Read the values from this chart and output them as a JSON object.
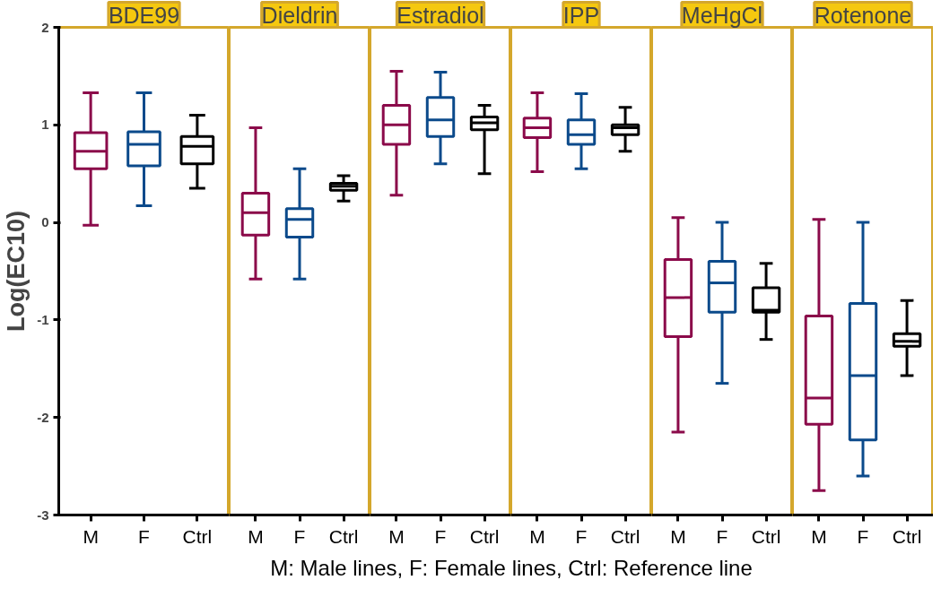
{
  "chart_data": [
    {
      "type": "box",
      "title": "BDE99",
      "ylabel": "Log(EC10)",
      "categories": [
        "M",
        "F",
        "Ctrl"
      ],
      "colors": [
        "#8b0a4a",
        "#0b4a8b",
        "#000000"
      ],
      "ylim": [
        -3,
        2
      ],
      "yticks": [
        -3,
        -2,
        -1,
        0,
        1,
        2
      ],
      "grid": false,
      "annotations": [
        "M: Male lines, F: Female lines, Ctrl: Reference line"
      ],
      "boxes": [
        {
          "low": -0.03,
          "q1": 0.55,
          "median": 0.73,
          "q3": 0.92,
          "high": 1.33
        },
        {
          "low": 0.17,
          "q1": 0.58,
          "median": 0.8,
          "q3": 0.93,
          "high": 1.33
        },
        {
          "low": 0.35,
          "q1": 0.6,
          "median": 0.78,
          "q3": 0.88,
          "high": 1.1
        }
      ]
    },
    {
      "type": "box",
      "title": "Dieldrin",
      "categories": [
        "M",
        "F",
        "Ctrl"
      ],
      "colors": [
        "#8b0a4a",
        "#0b4a8b",
        "#000000"
      ],
      "ylim": [
        -3,
        2
      ],
      "yticks": [
        -3,
        -2,
        -1,
        0,
        1,
        2
      ],
      "grid": false,
      "tick_labels": "x",
      "boxes": [
        {
          "low": -0.58,
          "q1": -0.13,
          "median": 0.1,
          "q3": 0.3,
          "high": 0.97
        },
        {
          "low": -0.58,
          "q1": -0.15,
          "median": 0.03,
          "q3": 0.14,
          "high": 0.55
        },
        {
          "low": 0.22,
          "q1": 0.33,
          "median": 0.37,
          "q3": 0.4,
          "high": 0.48
        }
      ]
    },
    {
      "type": "box",
      "title": "Estradiol",
      "categories": [
        "M",
        "F",
        "Ctrl"
      ],
      "colors": [
        "#8b0a4a",
        "#0b4a8b",
        "#000000"
      ],
      "ylim": [
        -3,
        2
      ],
      "yticks": [
        -3,
        -2,
        -1,
        0,
        1,
        2
      ],
      "grid": false,
      "tick_labels": "x",
      "boxes": [
        {
          "low": 0.28,
          "q1": 0.8,
          "median": 1.0,
          "q3": 1.2,
          "high": 1.55
        },
        {
          "low": 0.6,
          "q1": 0.88,
          "median": 1.05,
          "q3": 1.28,
          "high": 1.54
        },
        {
          "low": 0.5,
          "q1": 0.95,
          "median": 1.02,
          "q3": 1.08,
          "high": 1.2
        }
      ]
    },
    {
      "type": "box",
      "title": "IPP",
      "categories": [
        "M",
        "F",
        "Ctrl"
      ],
      "colors": [
        "#8b0a4a",
        "#0b4a8b",
        "#000000"
      ],
      "ylim": [
        -3,
        2
      ],
      "yticks": [
        -3,
        -2,
        -1,
        0,
        1,
        2
      ],
      "grid": false,
      "tick_labels": "x",
      "boxes": [
        {
          "low": 0.52,
          "q1": 0.87,
          "median": 0.97,
          "q3": 1.07,
          "high": 1.33
        },
        {
          "low": 0.55,
          "q1": 0.8,
          "median": 0.9,
          "q3": 1.05,
          "high": 1.32
        },
        {
          "low": 0.73,
          "q1": 0.9,
          "median": 0.97,
          "q3": 1.0,
          "high": 1.18
        }
      ]
    },
    {
      "type": "box",
      "title": "MeHgCl",
      "categories": [
        "M",
        "F",
        "Ctrl"
      ],
      "colors": [
        "#8b0a4a",
        "#0b4a8b",
        "#000000"
      ],
      "ylim": [
        -3,
        2
      ],
      "yticks": [
        -3,
        -2,
        -1,
        0,
        1,
        2
      ],
      "grid": false,
      "tick_labels": "x",
      "boxes": [
        {
          "low": -2.15,
          "q1": -1.17,
          "median": -0.77,
          "q3": -0.38,
          "high": 0.05
        },
        {
          "low": -1.65,
          "q1": -0.92,
          "median": -0.62,
          "q3": -0.4,
          "high": 0.0
        },
        {
          "low": -1.2,
          "q1": -0.92,
          "median": -0.9,
          "q3": -0.67,
          "high": -0.42
        }
      ]
    },
    {
      "type": "box",
      "title": "Rotenone",
      "categories": [
        "M",
        "F",
        "Ctrl"
      ],
      "colors": [
        "#8b0a4a",
        "#0b4a8b",
        "#000000"
      ],
      "ylim": [
        -3,
        2
      ],
      "yticks": [
        -3,
        -2,
        -1,
        0,
        1,
        2
      ],
      "grid": false,
      "tick_labels": "x",
      "boxes": [
        {
          "low": -2.75,
          "q1": -2.07,
          "median": -1.8,
          "q3": -0.96,
          "high": 0.03
        },
        {
          "low": -2.6,
          "q1": -2.23,
          "median": -1.57,
          "q3": -0.83,
          "high": 0.0
        },
        {
          "low": -1.57,
          "q1": -1.27,
          "median": -1.22,
          "q3": -1.14,
          "high": -0.8
        }
      ]
    }
  ]
}
